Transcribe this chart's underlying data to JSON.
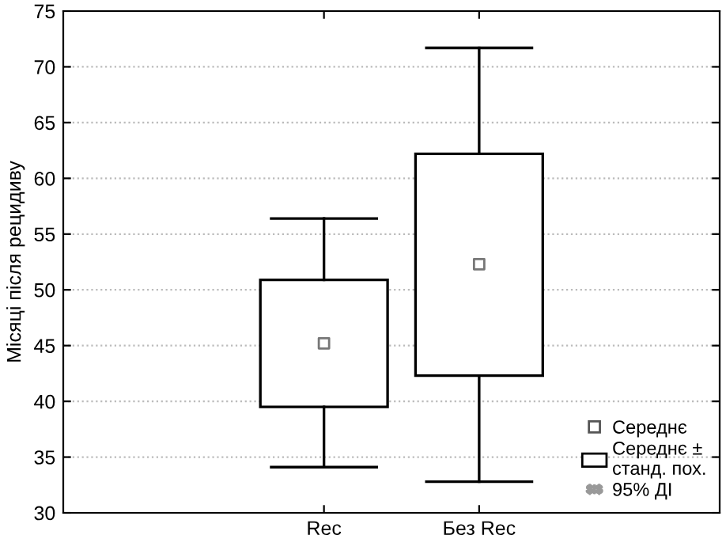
{
  "chart_data": {
    "type": "box",
    "ylabel": "Місяці після рецидиву",
    "categories": [
      "Rec",
      "Без Rec"
    ],
    "boxes": [
      {
        "low": 34.1,
        "q1": 39.5,
        "q3": 50.9,
        "high": 56.4,
        "mean": 45.2
      },
      {
        "low": 32.8,
        "q1": 42.3,
        "q3": 62.2,
        "high": 71.7,
        "mean": 52.3
      }
    ],
    "ylim": [
      30,
      75
    ],
    "yticks": [
      30,
      35,
      40,
      45,
      50,
      55,
      60,
      65,
      70,
      75
    ],
    "grid": "y",
    "annotations": [
      "Середнє",
      "Середнє ±\nстанд. пох.",
      "95% ДІ"
    ]
  }
}
